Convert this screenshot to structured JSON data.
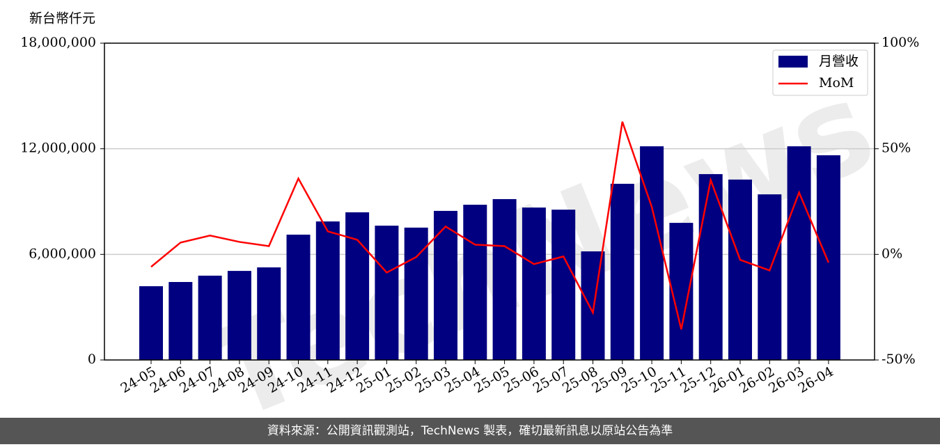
{
  "chart_data": {
    "type": "bar_line",
    "y_label": "新台幣仟元",
    "watermark": "TechNews",
    "footer": "資料來源：公開資訊觀測站，TechNews 製表，確切最新訊息以原站公告為準",
    "categories": [
      "24-05",
      "24-06",
      "24-07",
      "24-08",
      "24-09",
      "24-10",
      "24-11",
      "24-12",
      "25-01",
      "25-02",
      "25-03",
      "25-04",
      "25-05",
      "25-06",
      "25-07",
      "25-08",
      "25-09",
      "25-10",
      "25-11",
      "25-12",
      "26-01",
      "26-02",
      "26-03",
      "26-04"
    ],
    "series": [
      {
        "name": "月營收",
        "type": "bar",
        "color": "#000080",
        "values": [
          4190000,
          4430000,
          4790000,
          5060000,
          5260000,
          7120000,
          7870000,
          8390000,
          7630000,
          7520000,
          8470000,
          8820000,
          9140000,
          8660000,
          8540000,
          6170000,
          10010000,
          12140000,
          7790000,
          10560000,
          10250000,
          9410000,
          12140000,
          11630000
        ]
      },
      {
        "name": "MoM",
        "type": "line",
        "axis": "y2",
        "color": "#ff0000",
        "values": [
          -5.9,
          5.6,
          8.9,
          5.9,
          3.9,
          35.9,
          10.9,
          6.9,
          -8.6,
          -1.3,
          13.2,
          4.6,
          3.9,
          -4.6,
          -1.0,
          -27.6,
          62.8,
          22.4,
          -35.5,
          35.2,
          -2.6,
          -7.6,
          29.3,
          -3.9
        ]
      }
    ],
    "ylim": [
      0,
      18000000
    ],
    "yticks": [
      {
        "value": 0,
        "label": "0"
      },
      {
        "value": 6000000,
        "label": "6,000,000"
      },
      {
        "value": 12000000,
        "label": "12,000,000"
      },
      {
        "value": 18000000,
        "label": "18,000,000"
      }
    ],
    "y2lim": [
      -50,
      100
    ],
    "y2ticks": [
      {
        "value": -50,
        "label": "-50%"
      },
      {
        "value": 0,
        "label": "0%"
      },
      {
        "value": 50,
        "label": "50%"
      },
      {
        "value": 100,
        "label": "100%"
      }
    ],
    "grid": true,
    "legend": "upper right"
  }
}
